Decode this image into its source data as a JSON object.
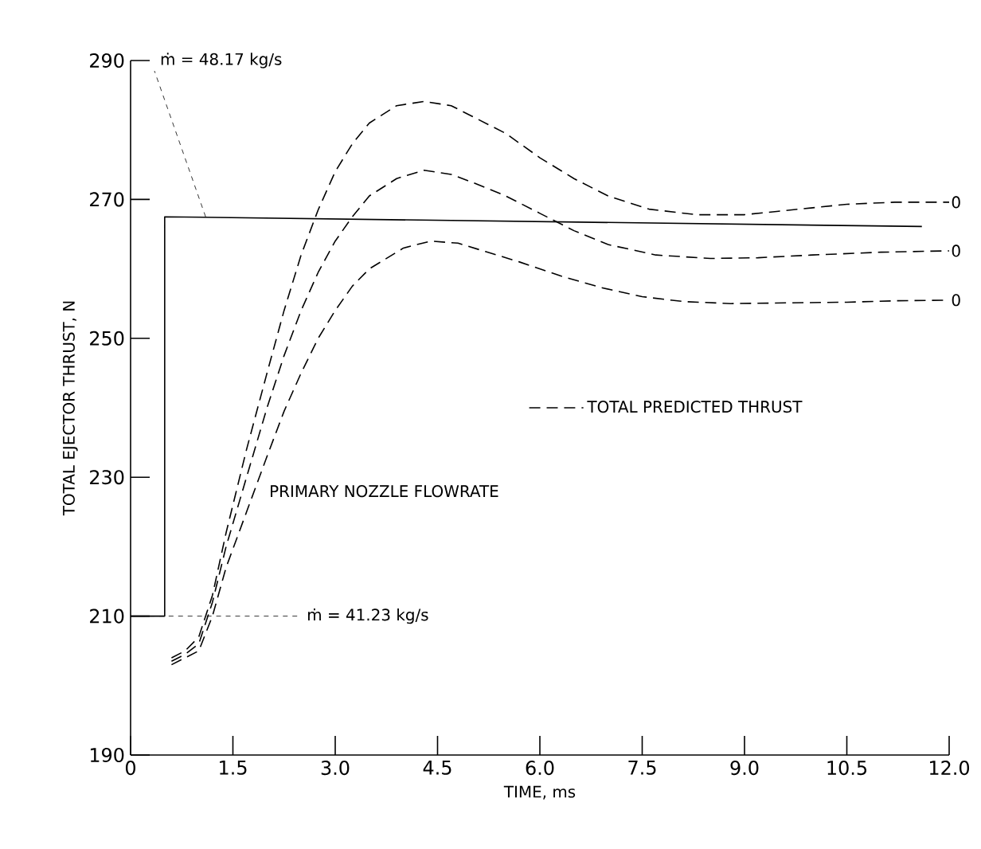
{
  "chart_data": {
    "type": "line",
    "xlabel": "TIME, ms",
    "ylabel": "TOTAL EJECTOR THRUST, N",
    "xlim": [
      0,
      12
    ],
    "ylim": [
      190,
      290
    ],
    "xticks": [
      {
        "value": 0,
        "label": "0"
      },
      {
        "value": 1.5,
        "label": "1.5"
      },
      {
        "value": 3,
        "label": "3.0"
      },
      {
        "value": 4.5,
        "label": "4.5"
      },
      {
        "value": 6,
        "label": "6.0"
      },
      {
        "value": 7.5,
        "label": "7.5"
      },
      {
        "value": 9,
        "label": "9.0"
      },
      {
        "value": 10.5,
        "label": "10.5"
      },
      {
        "value": 12,
        "label": "12.0"
      }
    ],
    "yticks": [
      190,
      210,
      230,
      250,
      270,
      290
    ],
    "legend": "right",
    "grid": false,
    "series": [
      {
        "color": "#000000",
        "line_style": "solid",
        "x": [
          0,
          0.5,
          0.5,
          11.6
        ],
        "values": [
          210,
          210,
          267.5,
          266.1
        ]
      },
      {
        "name": "TOTAL PREDICTED THRUST",
        "color": "#000000",
        "line_style": "dashed",
        "x": [
          0.6,
          0.8,
          1.0,
          1.2,
          1.4,
          1.7,
          2.0,
          2.25,
          2.5,
          2.75,
          3.0,
          3.25,
          3.5,
          3.9,
          4.3,
          4.7,
          5.0,
          5.5,
          6.0,
          6.5,
          7.0,
          7.6,
          8.3,
          9.0,
          9.5,
          10.5,
          11.2,
          12
        ],
        "values": [
          204,
          205,
          207,
          213,
          222,
          234,
          245,
          254,
          262,
          268.5,
          274,
          278,
          281,
          283.5,
          284.1,
          283.5,
          282,
          279.5,
          276,
          273,
          270.5,
          268.6,
          267.8,
          267.8,
          268.3,
          269.3,
          269.6,
          269.6
        ]
      },
      {
        "color": "#000000",
        "line_style": "dashed",
        "x": [
          0.6,
          0.8,
          1.0,
          1.2,
          1.4,
          1.7,
          2.0,
          2.25,
          2.5,
          2.75,
          3.0,
          3.25,
          3.5,
          3.9,
          4.3,
          4.7,
          5.0,
          5.5,
          6.0,
          6.5,
          7.0,
          7.7,
          8.5,
          9.2,
          10,
          11,
          12
        ],
        "values": [
          203.5,
          204.5,
          206,
          212,
          220,
          230,
          240,
          247.5,
          254,
          259.5,
          264,
          267.5,
          270.5,
          273,
          274.2,
          273.6,
          272.5,
          270.5,
          268,
          265.5,
          263.5,
          262,
          261.5,
          261.6,
          262,
          262.4,
          262.6
        ]
      },
      {
        "color": "#000000",
        "line_style": "dashed",
        "x": [
          0.6,
          0.8,
          1.0,
          1.2,
          1.4,
          1.7,
          2.0,
          2.25,
          2.5,
          2.75,
          3.0,
          3.25,
          3.5,
          4.0,
          4.4,
          4.8,
          5.2,
          5.7,
          6.3,
          6.9,
          7.5,
          8.1,
          8.8,
          9.6,
          10.5,
          11.2,
          12
        ],
        "values": [
          203,
          204,
          205,
          210,
          217,
          225,
          233,
          239.5,
          245,
          250,
          254,
          257.5,
          260,
          263,
          264,
          263.7,
          262.5,
          261,
          259,
          257.3,
          256,
          255.3,
          255,
          255.1,
          255.2,
          255.4,
          255.5
        ]
      }
    ],
    "annotations": [
      {
        "text": "ṁ = 48.17 kg/s",
        "x": 1.1,
        "y": 267.5
      },
      {
        "text": "ṁ = 41.23 kg/s",
        "x": 0,
        "y": 210
      },
      "PRIMARY NOZZLE FLOWRATE",
      {
        "text": "0",
        "x": 12,
        "y": 269.6
      },
      {
        "text": "0",
        "x": 12,
        "y": 262.6
      },
      {
        "text": "0",
        "x": 12,
        "y": 255.5
      }
    ]
  }
}
